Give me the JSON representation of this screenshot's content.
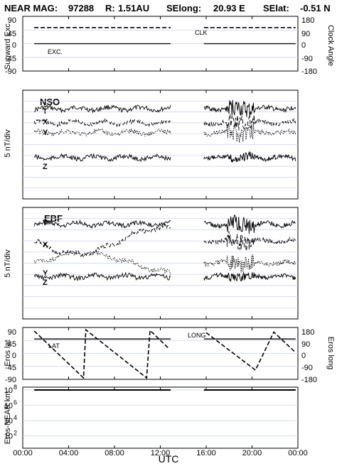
{
  "header": {
    "mission": "NEAR MAG:",
    "date": "97288",
    "r_label": "R:",
    "r_value": "1.51AU",
    "selong_label": "SElong:",
    "selong_value": "20.93 E",
    "selat_label": "SElat:",
    "selat_value": "-0.51 N"
  },
  "xaxis": {
    "label": "UTC",
    "ticks": [
      "00:00",
      "04:00",
      "08:00",
      "12:00",
      "16:00",
      "20:00",
      "00:00"
    ],
    "tick_hours": [
      0,
      4,
      8,
      12,
      16,
      20,
      24
    ],
    "range_hours": [
      0,
      24
    ],
    "gap_hours": [
      13,
      16
    ]
  },
  "chart_data": [
    {
      "type": "line",
      "ylabel_left": "Sunward Exc.",
      "ylabel_right": "Clock Angle",
      "yticks_left": [
        "90",
        "45",
        "0",
        "-45",
        "-90"
      ],
      "yticks_right": [
        "180",
        "90",
        "0",
        "-90",
        "-180"
      ],
      "ylim": [
        -90,
        90
      ],
      "annotations": [
        "CLK",
        "EXC."
      ],
      "series": [
        {
          "name": "CLK",
          "style": "dashed",
          "points": [
            [
              1,
              53
            ],
            [
              12.9,
              53
            ],
            [
              15.8,
              53
            ],
            [
              23.8,
              53
            ]
          ]
        },
        {
          "name": "EXC.",
          "style": "solid",
          "points": [
            [
              1,
              0
            ],
            [
              12.9,
              0
            ],
            [
              15.8,
              0
            ],
            [
              23.8,
              0
            ]
          ]
        }
      ]
    },
    {
      "type": "line",
      "title": "NSO",
      "ylabel": "5 nT/div",
      "series_labels": [
        "T",
        "X",
        "Y",
        "Z"
      ],
      "series": [
        {
          "name": "T",
          "style": "solid",
          "baseline_div": 8.3
        },
        {
          "name": "X",
          "style": "dashed",
          "baseline_div": 7.0
        },
        {
          "name": "Y",
          "style": "dotted",
          "baseline_div": 6.1
        },
        {
          "name": "Z",
          "style": "solid",
          "baseline_div": 3.8
        }
      ]
    },
    {
      "type": "line",
      "title": "EBF",
      "ylabel": "5 nT/div",
      "series_labels": [
        "T",
        "X",
        "Y",
        "Z"
      ],
      "series": [
        {
          "name": "T",
          "style": "solid",
          "baseline_div": 8.5
        },
        {
          "name": "X",
          "style": "dashed",
          "baseline_div": 7.0
        },
        {
          "name": "Y",
          "style": "dotted",
          "baseline_div": 5.0
        },
        {
          "name": "Z",
          "style": "solid",
          "baseline_div": 3.8
        }
      ]
    },
    {
      "type": "line",
      "ylabel_left": "Eros lat",
      "ylabel_right": "Eros long",
      "yticks_left": [
        "90",
        "45",
        "0",
        "-45",
        "-90"
      ],
      "yticks_right": [
        "180",
        "90",
        "0",
        "-90",
        "-180"
      ],
      "ylim": [
        -90,
        90
      ],
      "annotations": [
        "LAT",
        "LONG"
      ],
      "series": [
        {
          "name": "LAT",
          "style": "solid",
          "points": [
            [
              1,
              50
            ],
            [
              12.9,
              50
            ],
            [
              15.8,
              50
            ],
            [
              23.8,
              50
            ]
          ]
        },
        {
          "name": "LONG",
          "style": "dashed",
          "points": [
            [
              1,
              78
            ],
            [
              5.3,
              -85
            ],
            [
              5.5,
              82
            ],
            [
              10.8,
              -85
            ],
            [
              11.1,
              80
            ],
            [
              12.8,
              15
            ],
            [
              16.0,
              72
            ],
            [
              20.3,
              -58
            ],
            [
              21.9,
              74
            ],
            [
              23.8,
              3
            ]
          ]
        }
      ]
    },
    {
      "type": "line",
      "ylabel": "Eros-NEAR km",
      "yscale": "log",
      "yticks": [
        "10^8",
        "10^6",
        "10^4",
        "10^2"
      ],
      "ylim": [
        1,
        100000000
      ],
      "series": [
        {
          "name": "",
          "style": "solid",
          "points": [
            [
              1,
              100000000
            ],
            [
              12.9,
              100000000
            ],
            [
              15.8,
              100000000
            ],
            [
              23.8,
              100000000
            ]
          ]
        }
      ]
    }
  ]
}
